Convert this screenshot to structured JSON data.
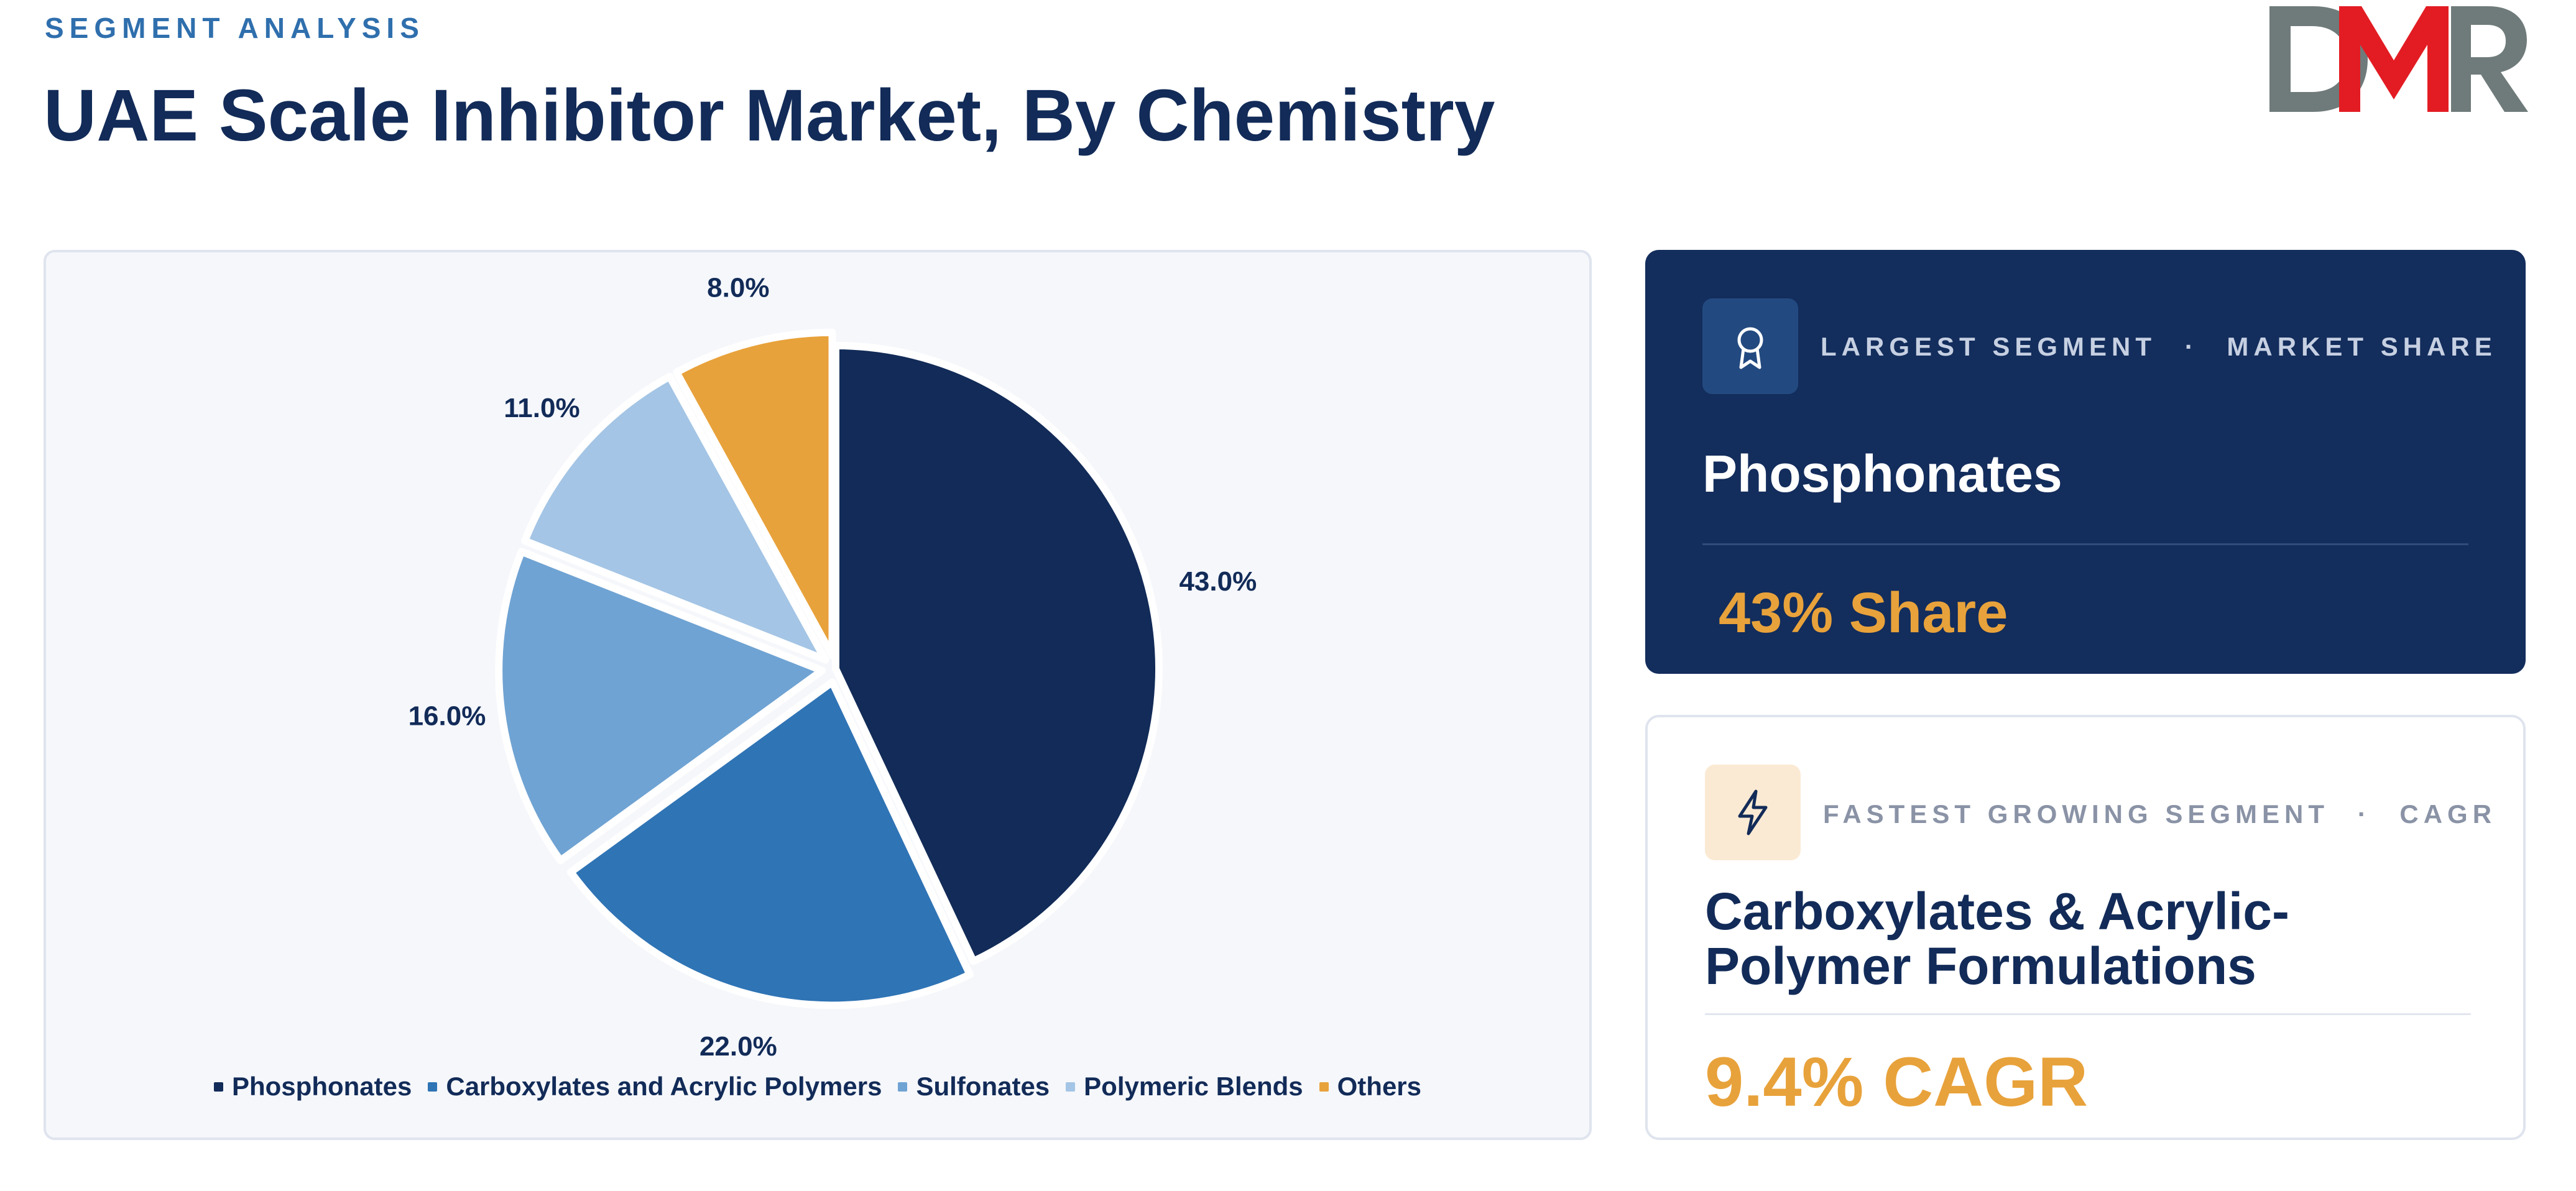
{
  "header": {
    "eyebrow": "SEGMENT ANALYSIS",
    "title": "UAE Scale Inhibitor Market, By Chemistry"
  },
  "logo": {
    "text": "DMR",
    "colors": {
      "dark": "#6f7b7a",
      "accent": "#e31c23"
    }
  },
  "chart_data": {
    "type": "pie",
    "title": "",
    "labels": [
      "Phosphonates",
      "Carboxylates and Acrylic Polymers",
      "Sulfonates",
      "Polymeric Blends",
      "Others"
    ],
    "values": [
      43.0,
      22.0,
      16.0,
      11.0,
      8.0
    ],
    "value_labels": [
      "43.0%",
      "22.0%",
      "16.0%",
      "11.0%",
      "8.0%"
    ],
    "colors": [
      "#122b58",
      "#2f74b5",
      "#6fa3d3",
      "#a4c5e5",
      "#e8a23b"
    ],
    "start_angle": "12 o'clock",
    "direction": "clockwise",
    "legend": "bottom"
  },
  "largest_segment": {
    "icon": "award-icon",
    "eyebrow_left": "LARGEST SEGMENT",
    "separator": "·",
    "eyebrow_right": "MARKET SHARE",
    "name": "Phosphonates",
    "value": "43% Share"
  },
  "fastest_segment": {
    "icon": "lightning-icon",
    "eyebrow_left": "FASTEST GROWING SEGMENT",
    "separator": "·",
    "eyebrow_right": "CAGR",
    "name": "Carboxylates & Acrylic-Polymer Formulations",
    "value": "9.4% CAGR"
  }
}
